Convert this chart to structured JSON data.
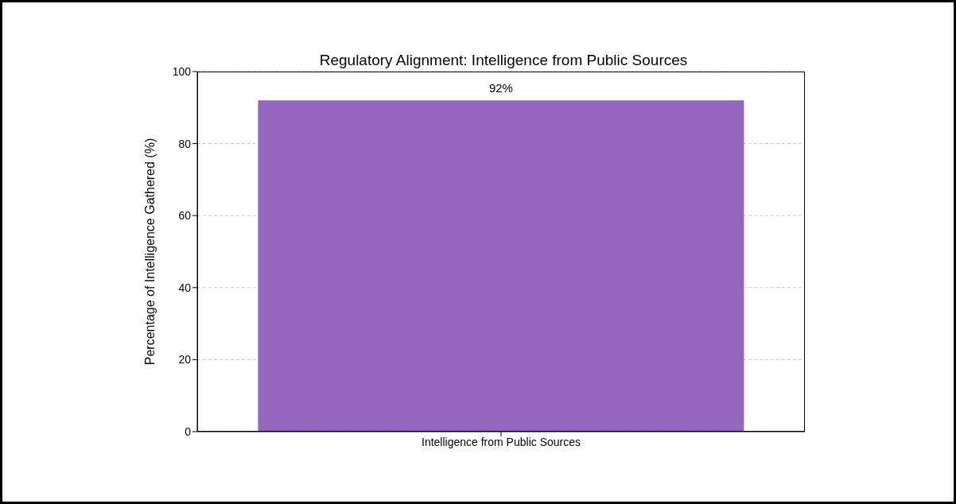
{
  "chart_data": {
    "type": "bar",
    "title": "Regulatory Alignment: Intelligence from Public Sources",
    "ylabel": "Percentage of Intelligence Gathered (%)",
    "categories": [
      "Intelligence from Public Sources"
    ],
    "values": [
      92
    ],
    "value_labels": [
      "92%"
    ],
    "color": "#9467bd",
    "ylim": [
      0,
      100
    ],
    "yticks": [
      0,
      20,
      40,
      60,
      80,
      100
    ],
    "grid": "y"
  }
}
